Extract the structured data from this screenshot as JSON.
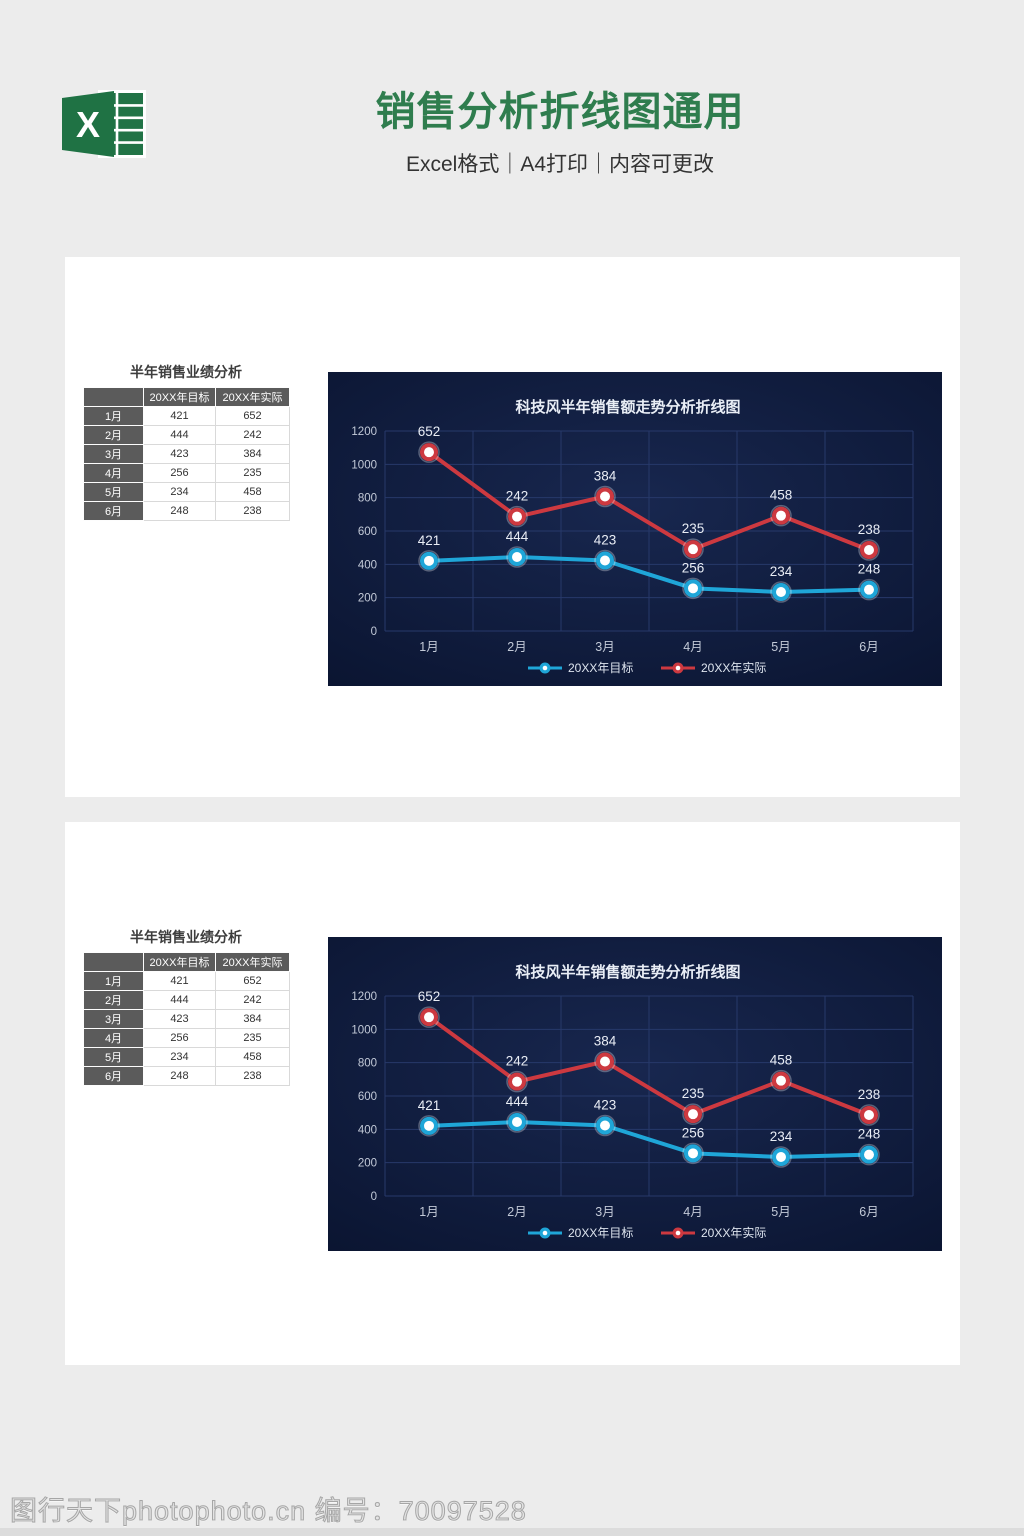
{
  "header": {
    "title": "销售分析折线图通用",
    "subtitle": "Excel格式｜A4打印｜内容可更改",
    "logo": "excel-icon",
    "title_color": "#2f7d4e",
    "excel_green": "#217346"
  },
  "table": {
    "title": "半年销售业绩分析",
    "columns": [
      "",
      "20XX年目标",
      "20XX年实际"
    ],
    "rows": [
      {
        "month": "1月",
        "target": 421,
        "actual": 652
      },
      {
        "month": "2月",
        "target": 444,
        "actual": 242
      },
      {
        "month": "3月",
        "target": 423,
        "actual": 384
      },
      {
        "month": "4月",
        "target": 256,
        "actual": 235
      },
      {
        "month": "5月",
        "target": 234,
        "actual": 458
      },
      {
        "month": "6月",
        "target": 248,
        "actual": 238
      }
    ],
    "header_bg": "#5b5b5b",
    "header_text_color": "#ffffff"
  },
  "chart_data": {
    "type": "line",
    "title": "科技风半年销售额走势分析折线图",
    "categories": [
      "1月",
      "2月",
      "3月",
      "4月",
      "5月",
      "6月"
    ],
    "series": [
      {
        "name": "20XX年目标",
        "color": "#1fa6d8",
        "values": [
          421,
          444,
          423,
          256,
          234,
          248
        ]
      },
      {
        "name": "20XX年实际",
        "color": "#cd3940",
        "values": [
          652,
          242,
          384,
          235,
          458,
          238
        ],
        "plot_note": "line drawn stacked on top of 20XX年目标",
        "plotted_values": [
          1073,
          686,
          807,
          491,
          692,
          486
        ]
      }
    ],
    "xlabel": "",
    "ylabel": "",
    "ylim": [
      0,
      1200
    ],
    "yticks": [
      0,
      200,
      400,
      600,
      800,
      1000,
      1200
    ],
    "grid": true,
    "legend_position": "bottom",
    "background_gradient": [
      "#18274f",
      "#0a1430"
    ],
    "gridline_color": "#27396a",
    "axis_text_color": "#c3cad8",
    "label_text_color": "#e9edf5",
    "title_color": "#e9eef6",
    "instances": 2
  },
  "footer": {
    "watermark": "图行天下photophoto.cn 编号：70097528"
  }
}
